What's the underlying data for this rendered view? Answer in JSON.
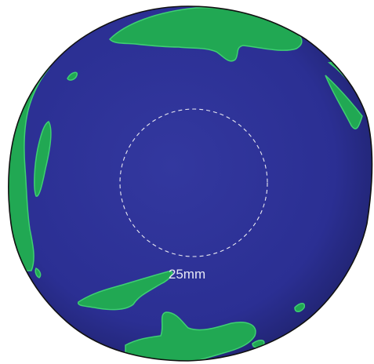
{
  "colors": {
    "ocean": "#2b2f93",
    "ocean_edge": "#20236f",
    "land": "#21a853",
    "land_highlight": "#3fcf73",
    "outline": "#111111",
    "ring": "#e8e8f0"
  },
  "scale_label": "25mm"
}
